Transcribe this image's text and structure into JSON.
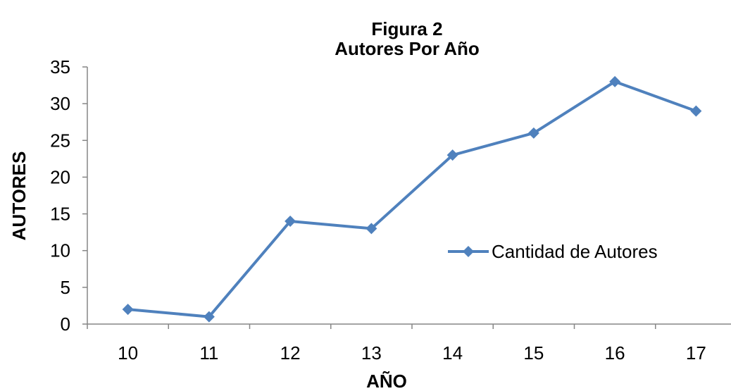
{
  "chart_data": {
    "type": "line",
    "title": "Figura 2",
    "subtitle": "Autores Por Año",
    "xlabel": "AÑO",
    "ylabel": "AUTORES",
    "categories": [
      "10",
      "11",
      "12",
      "13",
      "14",
      "15",
      "16",
      "17"
    ],
    "series": [
      {
        "name": "Cantidad de Autores",
        "values": [
          2,
          1,
          14,
          13,
          23,
          26,
          33,
          29
        ],
        "color": "#4F81BD",
        "marker": "diamond"
      }
    ],
    "ylim": [
      0,
      35
    ],
    "yticks": [
      "0",
      "5",
      "10",
      "15",
      "20",
      "25",
      "30",
      "35"
    ],
    "grid": false,
    "legend_position": "right"
  }
}
